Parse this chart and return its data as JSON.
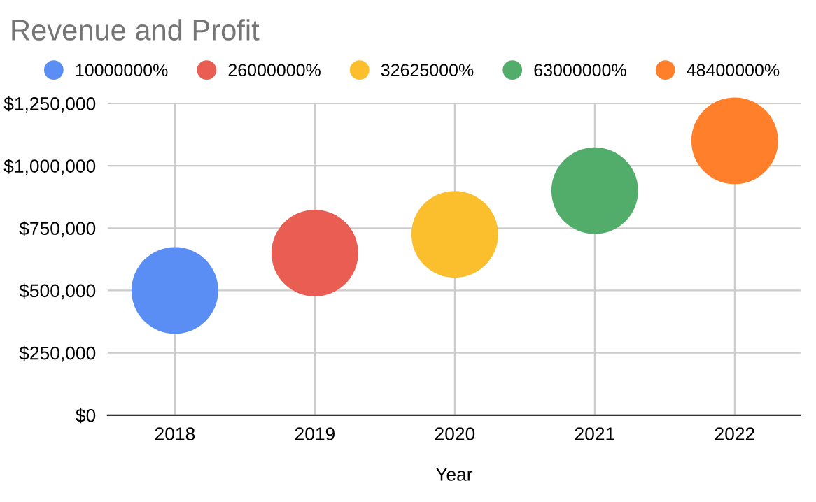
{
  "chart_data": {
    "type": "bubble",
    "title": "Revenue and Profit",
    "xlabel": "Year",
    "categories": [
      "2018",
      "2019",
      "2020",
      "2021",
      "2022"
    ],
    "series": [
      {
        "name": "10000000%",
        "color": "#5a8ef5",
        "values": [
          500000,
          null,
          null,
          null,
          null
        ],
        "sizes": [
          1,
          null,
          null,
          null,
          null
        ]
      },
      {
        "name": "26000000%",
        "color": "#e95d52",
        "values": [
          null,
          650000,
          null,
          null,
          null
        ],
        "sizes": [
          null,
          1,
          null,
          null,
          null
        ]
      },
      {
        "name": "32625000%",
        "color": "#fbbf2d",
        "values": [
          null,
          null,
          725000,
          null,
          null
        ],
        "sizes": [
          null,
          null,
          1,
          null,
          null
        ]
      },
      {
        "name": "63000000%",
        "color": "#53ad6a",
        "values": [
          null,
          null,
          null,
          900000,
          null
        ],
        "sizes": [
          null,
          null,
          null,
          1,
          null
        ]
      },
      {
        "name": "48400000%",
        "color": "#ff7f2a",
        "values": [
          null,
          null,
          null,
          null,
          1100000
        ],
        "sizes": [
          null,
          null,
          null,
          null,
          1
        ]
      }
    ],
    "ylim": [
      0,
      1250000
    ],
    "yticks": [
      {
        "value": 0,
        "label": "$0"
      },
      {
        "value": 250000,
        "label": "$250,000"
      },
      {
        "value": 500000,
        "label": "$500,000"
      },
      {
        "value": 750000,
        "label": "$750,000"
      },
      {
        "value": 1000000,
        "label": "$1,000,000"
      },
      {
        "value": 1250000,
        "label": "$1,250,000"
      }
    ],
    "grid": true,
    "legend": "top"
  }
}
